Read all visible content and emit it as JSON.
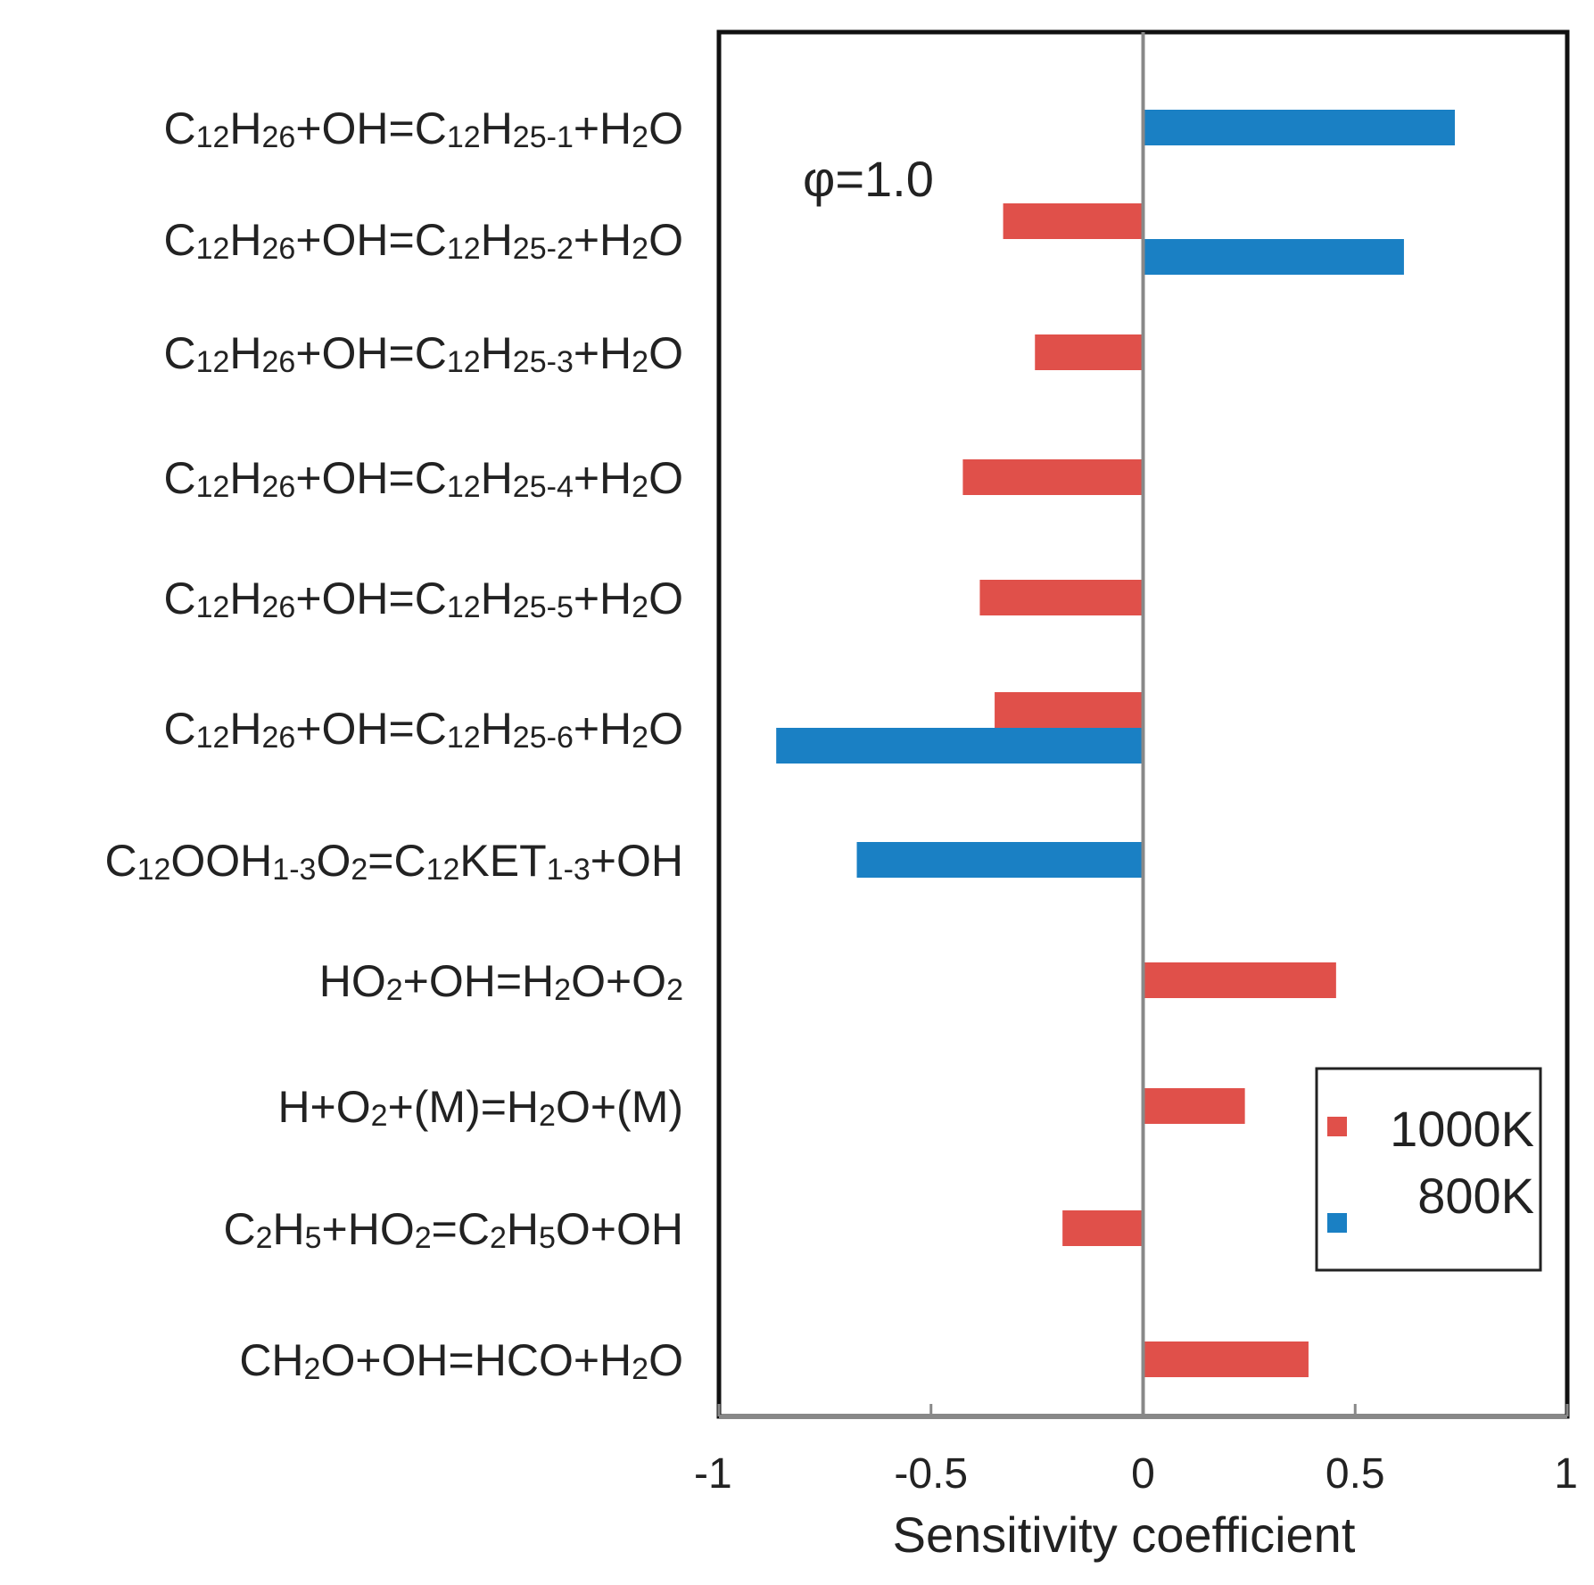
{
  "chart_data": {
    "type": "bar",
    "orientation": "horizontal",
    "annotation": "φ=1.0",
    "xlabel": "Sensitivity coefficient",
    "xlim": [
      -1,
      1
    ],
    "xticks": [
      -1,
      -0.5,
      0,
      0.5,
      1
    ],
    "xtick_labels": [
      "-1",
      "-0.5",
      "0",
      "0.5",
      "1"
    ],
    "legend_position": "lower-right",
    "categories": [
      "C12H26+OH=C12H25-1+H2O",
      "C12H26+OH=C12H25-2+H2O",
      "C12H26+OH=C12H25-3+H2O",
      "C12H26+OH=C12H25-4+H2O",
      "C12H26+OH=C12H25-5+H2O",
      "C12H26+OH=C12H25-6+H2O",
      "C12OOH1-3O2=C12KET1-3+OH",
      "HO2+OH=H2O+O2",
      "H+O2+(M)=H2O+(M)",
      "C2H5+HO2=C2H5O+OH",
      "CH2O+OH=HCO+H2O"
    ],
    "label_parts": [
      [
        [
          "C",
          ""
        ],
        [
          "12",
          "s"
        ],
        [
          "H",
          ""
        ],
        [
          "26",
          "s"
        ],
        [
          "+OH=C",
          ""
        ],
        [
          "12",
          "s"
        ],
        [
          "H",
          ""
        ],
        [
          "25-1",
          "s"
        ],
        [
          "+H",
          ""
        ],
        [
          "2",
          "s"
        ],
        [
          "O",
          ""
        ]
      ],
      [
        [
          "C",
          ""
        ],
        [
          "12",
          "s"
        ],
        [
          "H",
          ""
        ],
        [
          "26",
          "s"
        ],
        [
          "+OH=C",
          ""
        ],
        [
          "12",
          "s"
        ],
        [
          "H",
          ""
        ],
        [
          "25-2",
          "s"
        ],
        [
          "+H",
          ""
        ],
        [
          "2",
          "s"
        ],
        [
          "O",
          ""
        ]
      ],
      [
        [
          "C",
          ""
        ],
        [
          "12",
          "s"
        ],
        [
          "H",
          ""
        ],
        [
          "26",
          "s"
        ],
        [
          "+OH=C",
          ""
        ],
        [
          "12",
          "s"
        ],
        [
          "H",
          ""
        ],
        [
          "25-3",
          "s"
        ],
        [
          "+H",
          ""
        ],
        [
          "2",
          "s"
        ],
        [
          "O",
          ""
        ]
      ],
      [
        [
          "C",
          ""
        ],
        [
          "12",
          "s"
        ],
        [
          "H",
          ""
        ],
        [
          "26",
          "s"
        ],
        [
          "+OH=C",
          ""
        ],
        [
          "12",
          "s"
        ],
        [
          "H",
          ""
        ],
        [
          "25-4",
          "s"
        ],
        [
          "+H",
          ""
        ],
        [
          "2",
          "s"
        ],
        [
          "O",
          ""
        ]
      ],
      [
        [
          "C",
          ""
        ],
        [
          "12",
          "s"
        ],
        [
          "H",
          ""
        ],
        [
          "26",
          "s"
        ],
        [
          "+OH=C",
          ""
        ],
        [
          "12",
          "s"
        ],
        [
          "H",
          ""
        ],
        [
          "25-5",
          "s"
        ],
        [
          "+H",
          ""
        ],
        [
          "2",
          "s"
        ],
        [
          "O",
          ""
        ]
      ],
      [
        [
          "C",
          ""
        ],
        [
          "12",
          "s"
        ],
        [
          "H",
          ""
        ],
        [
          "26",
          "s"
        ],
        [
          "+OH=C",
          ""
        ],
        [
          "12",
          "s"
        ],
        [
          "H",
          ""
        ],
        [
          "25-6",
          "s"
        ],
        [
          "+H",
          ""
        ],
        [
          "2",
          "s"
        ],
        [
          "O",
          ""
        ]
      ],
      [
        [
          "C",
          ""
        ],
        [
          "12",
          "s"
        ],
        [
          "OOH",
          ""
        ],
        [
          "1-3",
          "s"
        ],
        [
          "O",
          ""
        ],
        [
          "2",
          "s"
        ],
        [
          "=C",
          ""
        ],
        [
          "12",
          "s"
        ],
        [
          "KET",
          ""
        ],
        [
          "1-3",
          "s"
        ],
        [
          "+OH",
          ""
        ]
      ],
      [
        [
          "HO",
          ""
        ],
        [
          "2",
          "s"
        ],
        [
          "+OH=H",
          ""
        ],
        [
          "2",
          "s"
        ],
        [
          "O+O",
          ""
        ],
        [
          "2",
          "s"
        ]
      ],
      [
        [
          "H+O",
          ""
        ],
        [
          "2",
          "s"
        ],
        [
          "+(M)=H",
          ""
        ],
        [
          "2",
          "s"
        ],
        [
          "O+(M)",
          ""
        ]
      ],
      [
        [
          "C",
          ""
        ],
        [
          "2",
          "s"
        ],
        [
          "H",
          ""
        ],
        [
          "5",
          "s"
        ],
        [
          "+HO",
          ""
        ],
        [
          "2",
          "s"
        ],
        [
          "=C",
          ""
        ],
        [
          "2",
          "s"
        ],
        [
          "H",
          ""
        ],
        [
          "5",
          "s"
        ],
        [
          "O+OH",
          ""
        ]
      ],
      [
        [
          "CH",
          ""
        ],
        [
          "2",
          "s"
        ],
        [
          "O+OH=HCO+H",
          ""
        ],
        [
          "2",
          "s"
        ],
        [
          "O",
          ""
        ]
      ]
    ],
    "series": [
      {
        "name": "1000K",
        "color": "#e0504a",
        "values": [
          null,
          -0.33,
          -0.255,
          -0.425,
          -0.385,
          -0.35,
          null,
          0.455,
          0.24,
          -0.19,
          0.39
        ]
      },
      {
        "name": "800K",
        "color": "#1a80c4",
        "values": [
          0.735,
          0.615,
          null,
          null,
          null,
          -0.865,
          -0.675,
          null,
          null,
          null,
          null
        ]
      }
    ]
  }
}
